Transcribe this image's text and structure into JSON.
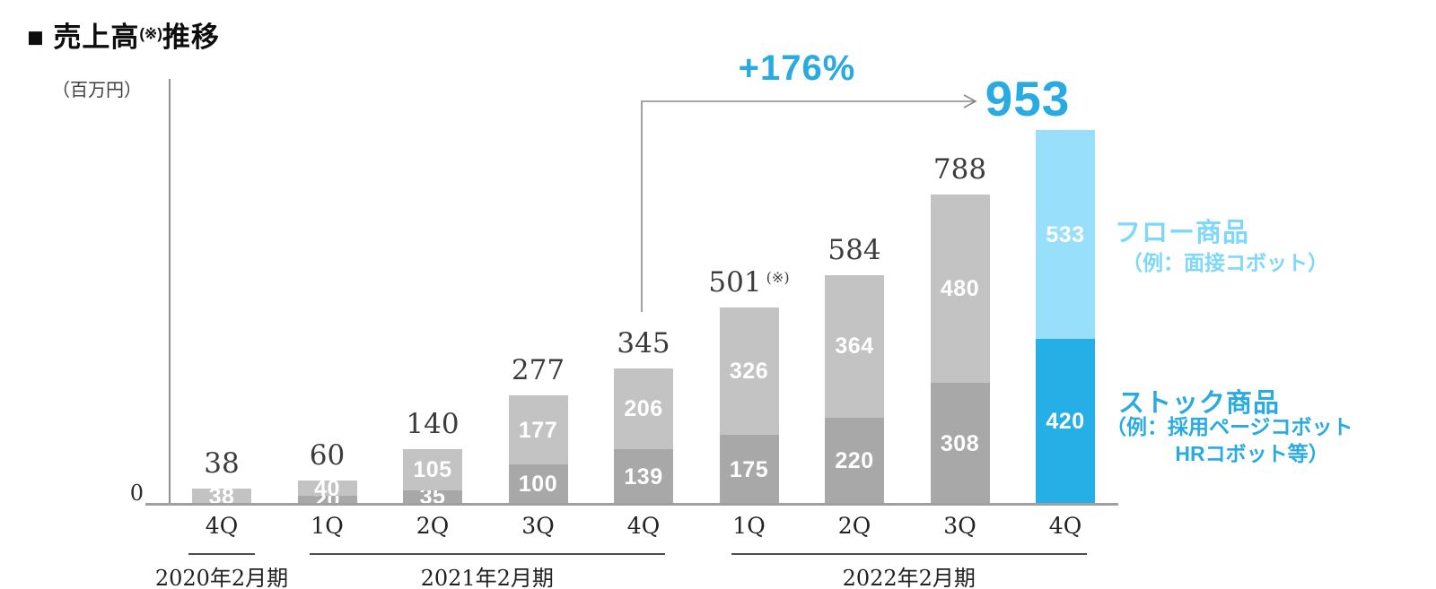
{
  "header": {
    "title_prefix": "■ 売上高",
    "title_note": "(※)",
    "title_suffix": "推移"
  },
  "axis": {
    "unit_label": "（百万円）",
    "origin_label": "0"
  },
  "annotation": {
    "growth_label": "+176%"
  },
  "legend": {
    "flow": {
      "title": "フロー商品",
      "subtitle": "（例：面接コボット）",
      "color": "#7dd8fa"
    },
    "stock": {
      "title": "ストック商品",
      "subtitle_line1": "（例：採用ページコボット",
      "subtitle_line2": "HRコボット等）",
      "color": "#29abe2"
    }
  },
  "colors": {
    "flow_gray": "#c3c3c3",
    "stock_gray": "#a8a8a8",
    "flow_blue": "#97dffa",
    "stock_blue": "#26aee7",
    "accent_blue": "#29abe2",
    "segment_label": "#ffffff",
    "total_label": "#3c3c3c",
    "axis_line": "#8f8f8f"
  },
  "chart_data": {
    "type": "bar",
    "stacked": true,
    "title": "売上高推移",
    "unit": "百万円",
    "ylabel": "（百万円）",
    "ylim": [
      0,
      953
    ],
    "legend_position": "right",
    "grid": false,
    "series_names": [
      "ストック商品（下段）",
      "フロー商品（上段）"
    ],
    "bars": [
      {
        "quarter": "4Q",
        "fiscal_year": "2020年2月期",
        "total": 38,
        "total_label": "38",
        "highlight": false,
        "segments": [
          {
            "series": "flow",
            "value": 38,
            "label": "38"
          }
        ]
      },
      {
        "quarter": "1Q",
        "fiscal_year": "2021年2月期",
        "total": 60,
        "total_label": "60",
        "highlight": false,
        "segments": [
          {
            "series": "stock",
            "value": 20,
            "label": "20"
          },
          {
            "series": "flow",
            "value": 40,
            "label": "40"
          }
        ]
      },
      {
        "quarter": "2Q",
        "fiscal_year": "2021年2月期",
        "total": 140,
        "total_label": "140",
        "highlight": false,
        "segments": [
          {
            "series": "stock",
            "value": 35,
            "label": "35"
          },
          {
            "series": "flow",
            "value": 105,
            "label": "105"
          }
        ]
      },
      {
        "quarter": "3Q",
        "fiscal_year": "2021年2月期",
        "total": 277,
        "total_label": "277",
        "highlight": false,
        "segments": [
          {
            "series": "stock",
            "value": 100,
            "label": "100"
          },
          {
            "series": "flow",
            "value": 177,
            "label": "177"
          }
        ]
      },
      {
        "quarter": "4Q",
        "fiscal_year": "2021年2月期",
        "total": 345,
        "total_label": "345",
        "highlight": false,
        "segments": [
          {
            "series": "stock",
            "value": 139,
            "label": "139"
          },
          {
            "series": "flow",
            "value": 206,
            "label": "206"
          }
        ]
      },
      {
        "quarter": "1Q",
        "fiscal_year": "2022年2月期",
        "total": 501,
        "total_label": "501",
        "total_note": "(※)",
        "highlight": false,
        "segments": [
          {
            "series": "stock",
            "value": 175,
            "label": "175"
          },
          {
            "series": "flow",
            "value": 326,
            "label": "326"
          }
        ]
      },
      {
        "quarter": "2Q",
        "fiscal_year": "2022年2月期",
        "total": 584,
        "total_label": "584",
        "highlight": false,
        "segments": [
          {
            "series": "stock",
            "value": 220,
            "label": "220"
          },
          {
            "series": "flow",
            "value": 364,
            "label": "364"
          }
        ]
      },
      {
        "quarter": "3Q",
        "fiscal_year": "2022年2月期",
        "total": 788,
        "total_label": "788",
        "highlight": false,
        "segments": [
          {
            "series": "stock",
            "value": 308,
            "label": "308"
          },
          {
            "series": "flow",
            "value": 480,
            "label": "480"
          }
        ]
      },
      {
        "quarter": "4Q",
        "fiscal_year": "2022年2月期",
        "total": 953,
        "total_label": "953",
        "highlight": true,
        "segments": [
          {
            "series": "stock",
            "value": 420,
            "label": "420"
          },
          {
            "series": "flow",
            "value": 533,
            "label": "533"
          }
        ]
      }
    ],
    "groups": [
      {
        "label": "2020年2月期",
        "from": 0,
        "to": 0
      },
      {
        "label": "2021年2月期",
        "from": 1,
        "to": 4
      },
      {
        "label": "2022年2月期",
        "from": 5,
        "to": 8
      }
    ],
    "growth_annotation": {
      "label": "+176%",
      "percent": 176,
      "from_bar_index": 4,
      "to_bar_index": 8
    }
  }
}
